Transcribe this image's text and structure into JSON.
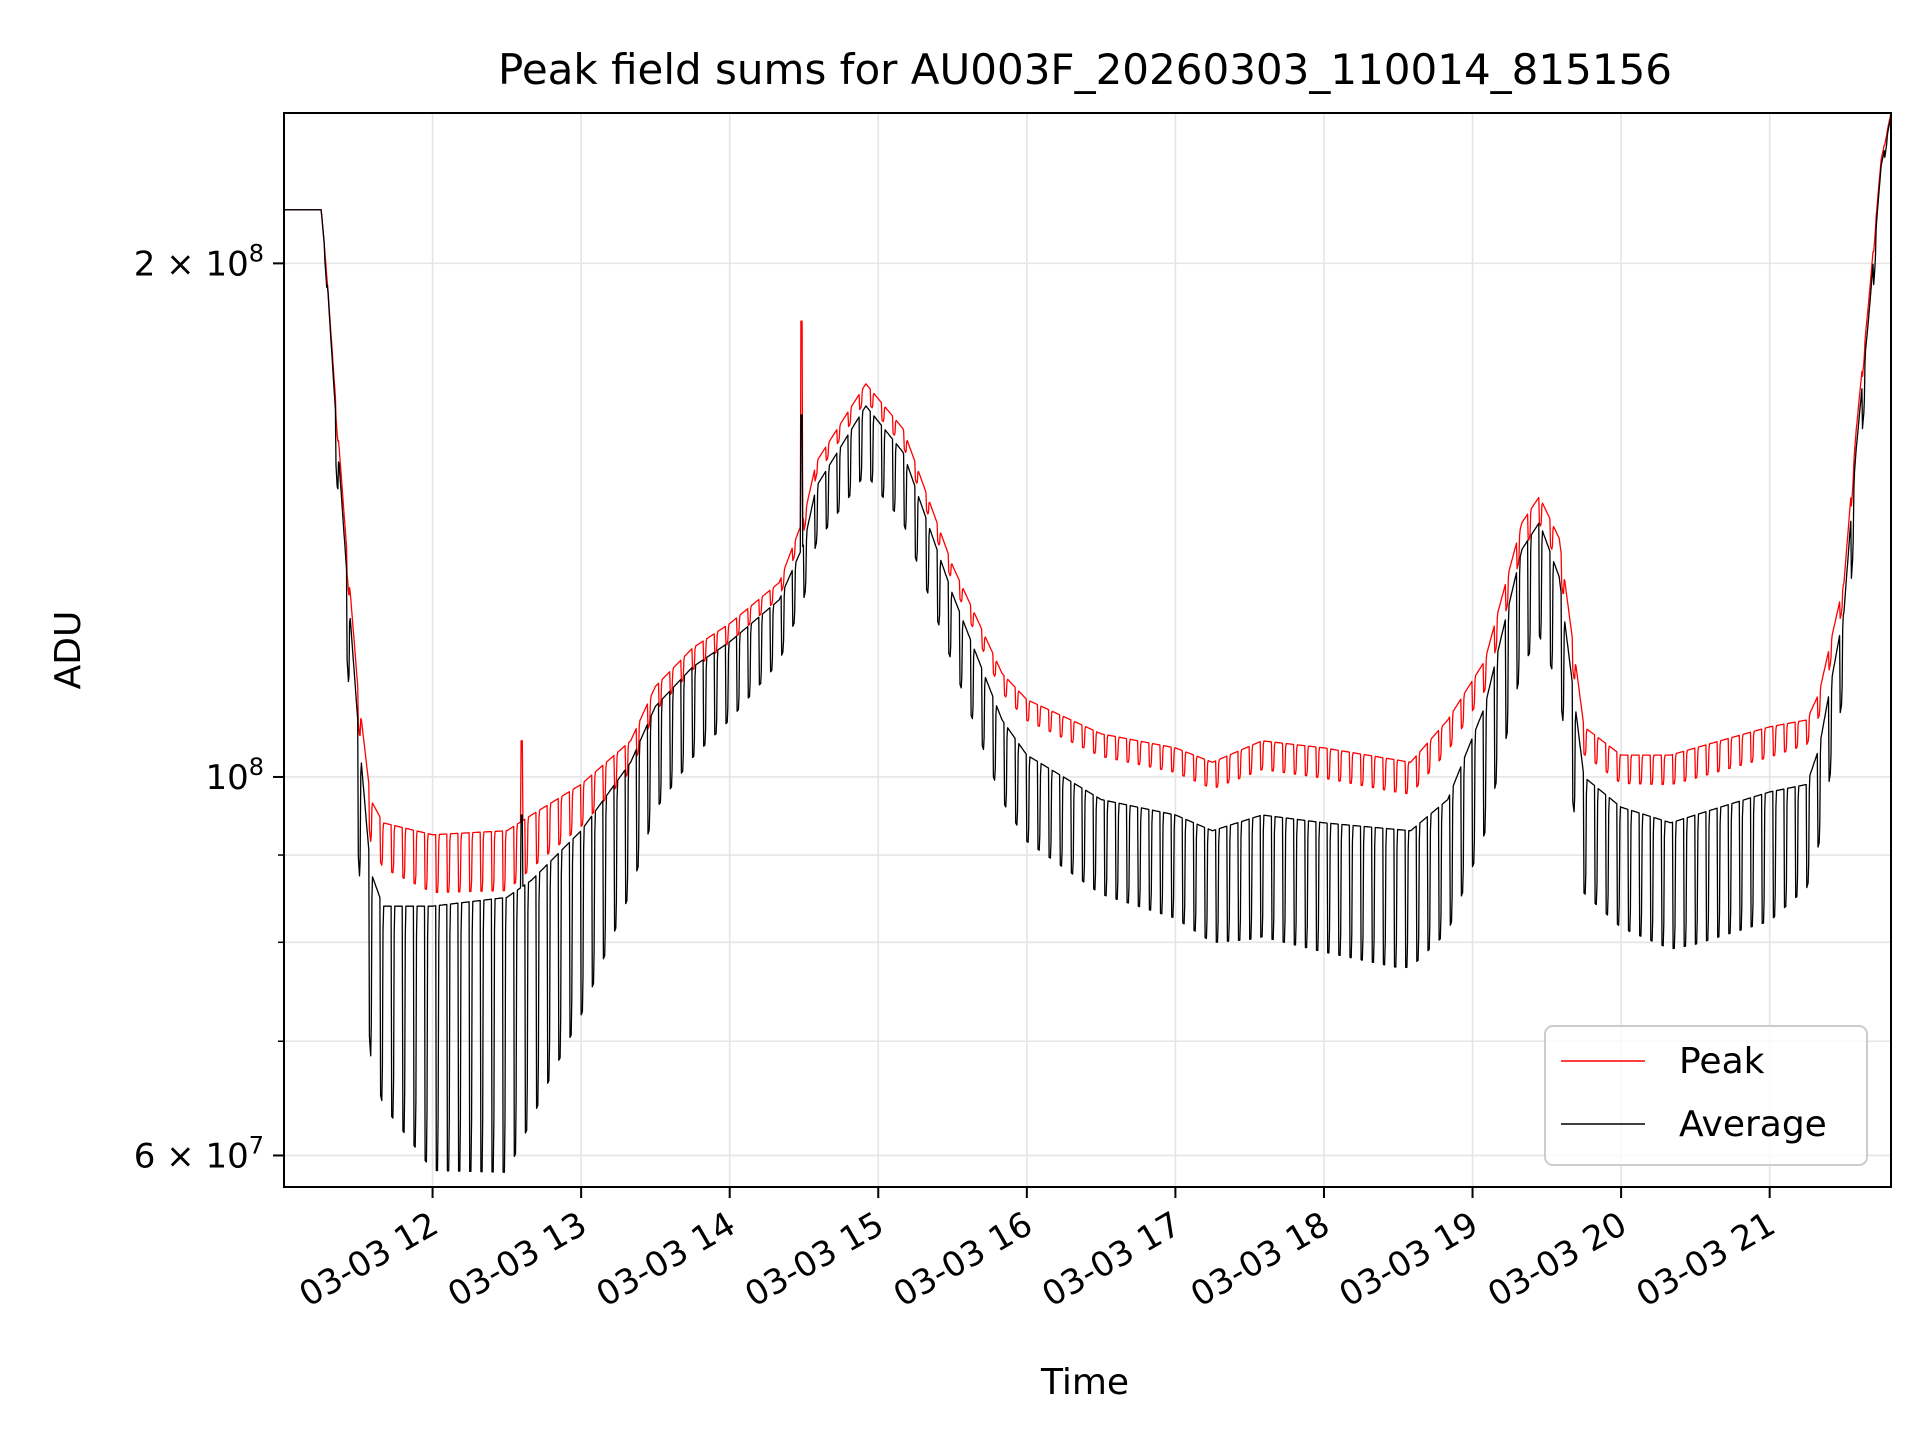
{
  "chart_data": {
    "type": "line",
    "title": "Peak field sums for AU003F_20260303_110014_815156",
    "xlabel": "Time",
    "ylabel": "ADU",
    "yscale": "log",
    "ylim": [
      57500000,
      245000000
    ],
    "xlim": [
      "2026-03-03 11:00",
      "2026-03-03 21:49"
    ],
    "grid": true,
    "legend_position": "lower right",
    "x_ticks": [
      "03-03 12",
      "03-03 13",
      "03-03 14",
      "03-03 15",
      "03-03 16",
      "03-03 17",
      "03-03 18",
      "03-03 19",
      "03-03 20",
      "03-03 21"
    ],
    "y_ticks": [
      {
        "value": 60000000,
        "label": "6 × 10",
        "exp": "7"
      },
      {
        "value": 100000000,
        "label": "10",
        "exp": "8"
      },
      {
        "value": 200000000,
        "label": "2 × 10",
        "exp": "8"
      }
    ],
    "y_minor_ticks": [
      70000000,
      80000000,
      90000000
    ],
    "oscillation_period_minutes": 4.5,
    "series": [
      {
        "name": "Peak",
        "color": "#ff0000",
        "x": [
          "2026-03-03 11:00",
          "2026-03-03 11:15",
          "2026-03-03 11:17",
          "2026-03-03 11:21",
          "2026-03-03 11:25",
          "2026-03-03 11:30",
          "2026-03-03 11:35",
          "2026-03-03 11:40",
          "2026-03-03 12:00",
          "2026-03-03 12:30",
          "2026-03-03 12:40",
          "2026-03-03 13:00",
          "2026-03-03 13:20",
          "2026-03-03 13:30",
          "2026-03-03 13:45",
          "2026-03-03 14:00",
          "2026-03-03 14:20",
          "2026-03-03 14:30",
          "2026-03-03 14:35",
          "2026-03-03 14:55",
          "2026-03-03 15:10",
          "2026-03-03 15:30",
          "2026-03-03 15:50",
          "2026-03-03 16:00",
          "2026-03-03 16:30",
          "2026-03-03 17:00",
          "2026-03-03 17:15",
          "2026-03-03 17:35",
          "2026-03-03 18:00",
          "2026-03-03 18:35",
          "2026-03-03 18:50",
          "2026-03-03 19:05",
          "2026-03-03 19:20",
          "2026-03-03 19:27",
          "2026-03-03 19:35",
          "2026-03-03 19:45",
          "2026-03-03 20:00",
          "2026-03-03 20:20",
          "2026-03-03 20:40",
          "2026-03-03 21:00",
          "2026-03-03 21:15",
          "2026-03-03 21:20",
          "2026-03-03 21:30",
          "2026-03-03 21:35",
          "2026-03-03 21:40",
          "2026-03-03 21:45",
          "2026-03-03 21:49"
        ],
        "y": [
          215000000,
          215000000,
          200000000,
          165000000,
          138000000,
          112000000,
          97000000,
          94000000,
          92500000,
          93000000,
          95000000,
          99000000,
          105000000,
          113000000,
          119000000,
          123000000,
          130000000,
          142000000,
          153000000,
          170000000,
          160000000,
          133000000,
          115000000,
          111000000,
          106000000,
          104000000,
          102000000,
          105000000,
          104000000,
          102000000,
          108000000,
          117000000,
          141000000,
          146000000,
          138000000,
          107000000,
          103000000,
          103000000,
          105000000,
          107000000,
          108000000,
          112000000,
          130000000,
          160000000,
          190000000,
          230000000,
          245000000
        ]
      },
      {
        "name": "Average",
        "color": "#000000",
        "x": [
          "2026-03-03 11:00",
          "2026-03-03 11:15",
          "2026-03-03 11:17",
          "2026-03-03 11:21",
          "2026-03-03 11:25",
          "2026-03-03 11:30",
          "2026-03-03 11:35",
          "2026-03-03 11:40",
          "2026-03-03 12:00",
          "2026-03-03 12:30",
          "2026-03-03 12:40",
          "2026-03-03 13:00",
          "2026-03-03 13:20",
          "2026-03-03 13:30",
          "2026-03-03 13:45",
          "2026-03-03 14:00",
          "2026-03-03 14:20",
          "2026-03-03 14:30",
          "2026-03-03 14:35",
          "2026-03-03 14:55",
          "2026-03-03 15:10",
          "2026-03-03 15:30",
          "2026-03-03 15:50",
          "2026-03-03 16:00",
          "2026-03-03 16:30",
          "2026-03-03 17:00",
          "2026-03-03 17:15",
          "2026-03-03 17:35",
          "2026-03-03 18:00",
          "2026-03-03 18:35",
          "2026-03-03 18:50",
          "2026-03-03 19:05",
          "2026-03-03 19:20",
          "2026-03-03 19:27",
          "2026-03-03 19:35",
          "2026-03-03 19:45",
          "2026-03-03 20:00",
          "2026-03-03 20:20",
          "2026-03-03 20:40",
          "2026-03-03 21:00",
          "2026-03-03 21:15",
          "2026-03-03 21:20",
          "2026-03-03 21:30",
          "2026-03-03 21:35",
          "2026-03-03 21:40",
          "2026-03-03 21:45",
          "2026-03-03 21:49"
        ],
        "y": [
          215000000,
          215000000,
          200000000,
          162000000,
          134000000,
          107000000,
          88000000,
          84000000,
          84000000,
          85000000,
          87000000,
          93000000,
          102000000,
          110000000,
          116000000,
          120000000,
          127000000,
          137000000,
          148000000,
          165000000,
          155000000,
          128000000,
          108000000,
          103000000,
          97000000,
          95000000,
          93000000,
          95000000,
          94000000,
          93000000,
          97000000,
          110000000,
          136000000,
          141000000,
          131000000,
          100000000,
          96000000,
          94000000,
          96000000,
          98000000,
          99000000,
          104000000,
          125000000,
          156000000,
          186000000,
          228000000,
          244000000
        ]
      }
    ],
    "average_trough_ratio": [
      [
        0,
        1
      ],
      [
        15,
        1
      ],
      [
        25,
        0.9
      ],
      [
        35,
        0.78
      ],
      [
        60,
        0.7
      ],
      [
        90,
        0.69
      ],
      [
        105,
        0.74
      ],
      [
        120,
        0.78
      ],
      [
        150,
        0.87
      ],
      [
        180,
        0.9
      ],
      [
        210,
        0.93
      ],
      [
        240,
        0.91
      ],
      [
        270,
        0.91
      ],
      [
        300,
        0.89
      ],
      [
        330,
        0.88
      ],
      [
        360,
        0.87
      ],
      [
        390,
        0.85
      ],
      [
        450,
        0.83
      ],
      [
        480,
        0.84
      ],
      [
        510,
        0.86
      ],
      [
        540,
        0.85
      ],
      [
        570,
        0.84
      ],
      [
        600,
        0.84
      ],
      [
        630,
        0.9
      ],
      [
        649,
        1
      ]
    ]
  },
  "legend": {
    "peak_label": "Peak",
    "average_label": "Average"
  }
}
